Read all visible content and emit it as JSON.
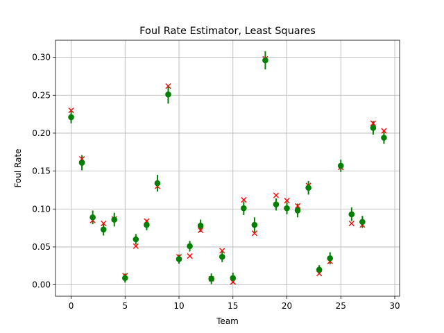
{
  "chart_data": {
    "type": "scatter",
    "title": "Foul Rate Estimator, Least Squares",
    "xlabel": "Team",
    "ylabel": "Foul Rate",
    "xlim": [
      -1.45,
      30.45
    ],
    "ylim": [
      -0.015,
      0.3225
    ],
    "xticks": [
      0,
      5,
      10,
      15,
      20,
      25,
      30
    ],
    "xtick_labels": [
      "0",
      "5",
      "10",
      "15",
      "20",
      "25",
      "30"
    ],
    "yticks": [
      0.0,
      0.05,
      0.1,
      0.15,
      0.2,
      0.25,
      0.3
    ],
    "ytick_labels": [
      "0.00",
      "0.05",
      "0.10",
      "0.15",
      "0.20",
      "0.25",
      "0.30"
    ],
    "grid": true,
    "colors": {
      "estimate": "#008000",
      "observed": "#ff0000"
    },
    "series": [
      {
        "marker": "x",
        "x": [
          0,
          1,
          2,
          3,
          4,
          5,
          6,
          7,
          8,
          9,
          10,
          11,
          12,
          13,
          14,
          15,
          16,
          17,
          18,
          19,
          20,
          21,
          22,
          23,
          24,
          25,
          26,
          27,
          28,
          29
        ],
        "y": [
          0.23,
          0.166,
          0.085,
          0.081,
          0.087,
          0.012,
          0.051,
          0.084,
          0.13,
          0.262,
          0.037,
          0.038,
          0.072,
          0.008,
          0.045,
          0.004,
          0.112,
          0.068,
          0.298,
          0.118,
          0.111,
          0.104,
          0.131,
          0.015,
          0.031,
          0.155,
          0.081,
          0.079,
          0.213,
          0.203
        ]
      },
      {
        "marker": "o",
        "x": [
          0,
          1,
          2,
          3,
          4,
          5,
          6,
          7,
          8,
          9,
          10,
          11,
          12,
          13,
          14,
          15,
          16,
          17,
          18,
          19,
          20,
          21,
          22,
          23,
          24,
          25,
          26,
          27,
          28,
          29
        ],
        "y": [
          0.221,
          0.161,
          0.089,
          0.073,
          0.086,
          0.009,
          0.06,
          0.079,
          0.134,
          0.251,
          0.034,
          0.051,
          0.078,
          0.008,
          0.037,
          0.009,
          0.101,
          0.079,
          0.296,
          0.106,
          0.101,
          0.098,
          0.128,
          0.02,
          0.035,
          0.157,
          0.093,
          0.083,
          0.207,
          0.194
        ],
        "yerr": [
          0.008,
          0.01,
          0.009,
          0.008,
          0.009,
          0.006,
          0.007,
          0.007,
          0.011,
          0.012,
          0.006,
          0.007,
          0.008,
          0.007,
          0.007,
          0.007,
          0.009,
          0.01,
          0.012,
          0.008,
          0.008,
          0.009,
          0.009,
          0.006,
          0.008,
          0.008,
          0.009,
          0.008,
          0.009,
          0.008
        ]
      }
    ]
  }
}
